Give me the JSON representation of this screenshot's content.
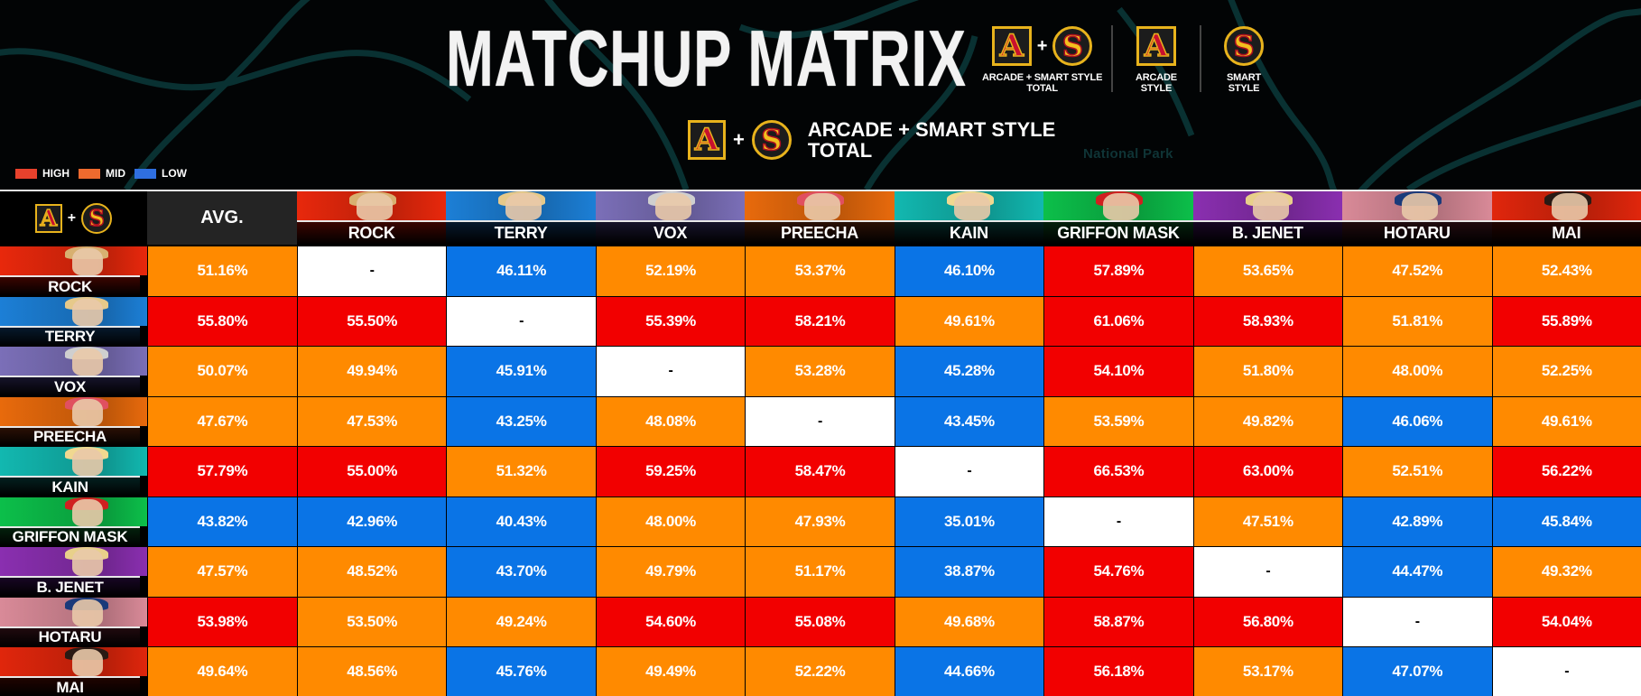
{
  "header": {
    "title": "MATCHUP MATRIX",
    "style_legend": [
      {
        "id": "total",
        "icons": [
          "A",
          "+",
          "S"
        ],
        "label": "ARCADE + SMART STYLE\nTOTAL"
      },
      {
        "id": "arcade",
        "icons": [
          "A"
        ],
        "label": "ARCADE\nSTYLE"
      },
      {
        "id": "smart",
        "icons": [
          "S"
        ],
        "label": "SMART\nSTYLE"
      }
    ],
    "current_view": {
      "icon_a": "A",
      "plus": "+",
      "icon_s": "S",
      "label": "ARCADE + SMART STYLE\nTOTAL"
    },
    "tier_legend": [
      {
        "label": "HIGH",
        "color": "#e8412c"
      },
      {
        "label": "MID",
        "color": "#ee6a2e"
      },
      {
        "label": "LOW",
        "color": "#2f6fe0"
      }
    ],
    "map_label": "National Park"
  },
  "colors": {
    "high": "#f20000",
    "mid": "#ff8a00",
    "low": "#0a74e6",
    "self": "#ffffff",
    "avg_header": "#242424"
  },
  "table": {
    "corner": {
      "icon_a": "A",
      "plus": "+",
      "icon_s": "S"
    },
    "avg_label": "AVG.",
    "self_marker": "-"
  },
  "chart_data": {
    "type": "heatmap",
    "title": "MATCHUP MATRIX",
    "subtitle": "ARCADE + SMART STYLE TOTAL",
    "legend": [
      "HIGH",
      "MID",
      "LOW"
    ],
    "columns": [
      "AVG.",
      "ROCK",
      "TERRY",
      "VOX",
      "PREECHA",
      "KAIN",
      "GRIFFON MASK",
      "B. JENET",
      "HOTARU",
      "MAI"
    ],
    "characters": [
      {
        "name": "ROCK",
        "theme": [
          "#e8280c",
          "#3a0500"
        ],
        "avg": {
          "v": "51.16%",
          "t": "mid"
        },
        "cells": [
          {
            "v": "-",
            "t": "self"
          },
          {
            "v": "46.11%",
            "t": "low"
          },
          {
            "v": "52.19%",
            "t": "mid"
          },
          {
            "v": "53.37%",
            "t": "mid"
          },
          {
            "v": "46.10%",
            "t": "low"
          },
          {
            "v": "57.89%",
            "t": "high"
          },
          {
            "v": "53.65%",
            "t": "mid"
          },
          {
            "v": "47.52%",
            "t": "mid"
          },
          {
            "v": "52.43%",
            "t": "mid"
          }
        ]
      },
      {
        "name": "TERRY",
        "theme": [
          "#1c7fd6",
          "#06192c"
        ],
        "avg": {
          "v": "55.80%",
          "t": "high"
        },
        "cells": [
          {
            "v": "55.50%",
            "t": "high"
          },
          {
            "v": "-",
            "t": "self"
          },
          {
            "v": "55.39%",
            "t": "high"
          },
          {
            "v": "58.21%",
            "t": "high"
          },
          {
            "v": "49.61%",
            "t": "mid"
          },
          {
            "v": "61.06%",
            "t": "high"
          },
          {
            "v": "58.93%",
            "t": "high"
          },
          {
            "v": "51.81%",
            "t": "mid"
          },
          {
            "v": "55.89%",
            "t": "high"
          }
        ]
      },
      {
        "name": "VOX",
        "theme": [
          "#7b6fb8",
          "#16132a"
        ],
        "avg": {
          "v": "50.07%",
          "t": "mid"
        },
        "cells": [
          {
            "v": "49.94%",
            "t": "mid"
          },
          {
            "v": "45.91%",
            "t": "low"
          },
          {
            "v": "-",
            "t": "self"
          },
          {
            "v": "53.28%",
            "t": "mid"
          },
          {
            "v": "45.28%",
            "t": "low"
          },
          {
            "v": "54.10%",
            "t": "high"
          },
          {
            "v": "51.80%",
            "t": "mid"
          },
          {
            "v": "48.00%",
            "t": "mid"
          },
          {
            "v": "52.25%",
            "t": "mid"
          }
        ]
      },
      {
        "name": "PREECHA",
        "theme": [
          "#e86a0c",
          "#2a1005"
        ],
        "avg": {
          "v": "47.67%",
          "t": "mid"
        },
        "cells": [
          {
            "v": "47.53%",
            "t": "mid"
          },
          {
            "v": "43.25%",
            "t": "low"
          },
          {
            "v": "48.08%",
            "t": "mid"
          },
          {
            "v": "-",
            "t": "self"
          },
          {
            "v": "43.45%",
            "t": "low"
          },
          {
            "v": "53.59%",
            "t": "mid"
          },
          {
            "v": "49.82%",
            "t": "mid"
          },
          {
            "v": "46.06%",
            "t": "low"
          },
          {
            "v": "49.61%",
            "t": "mid"
          }
        ]
      },
      {
        "name": "KAIN",
        "theme": [
          "#12b8b0",
          "#03201f"
        ],
        "avg": {
          "v": "57.79%",
          "t": "high"
        },
        "cells": [
          {
            "v": "55.00%",
            "t": "high"
          },
          {
            "v": "51.32%",
            "t": "mid"
          },
          {
            "v": "59.25%",
            "t": "high"
          },
          {
            "v": "58.47%",
            "t": "high"
          },
          {
            "v": "-",
            "t": "self"
          },
          {
            "v": "66.53%",
            "t": "high"
          },
          {
            "v": "63.00%",
            "t": "high"
          },
          {
            "v": "52.51%",
            "t": "mid"
          },
          {
            "v": "56.22%",
            "t": "high"
          }
        ]
      },
      {
        "name": "GRIFFON MASK",
        "theme": [
          "#0cbf4a",
          "#03200c"
        ],
        "avg": {
          "v": "43.82%",
          "t": "low"
        },
        "cells": [
          {
            "v": "42.96%",
            "t": "low"
          },
          {
            "v": "40.43%",
            "t": "low"
          },
          {
            "v": "48.00%",
            "t": "mid"
          },
          {
            "v": "47.93%",
            "t": "mid"
          },
          {
            "v": "35.01%",
            "t": "low"
          },
          {
            "v": "-",
            "t": "self"
          },
          {
            "v": "47.51%",
            "t": "mid"
          },
          {
            "v": "42.89%",
            "t": "low"
          },
          {
            "v": "45.84%",
            "t": "low"
          }
        ]
      },
      {
        "name": "B. JENET",
        "theme": [
          "#8a2fb0",
          "#180624"
        ],
        "avg": {
          "v": "47.57%",
          "t": "mid"
        },
        "cells": [
          {
            "v": "48.52%",
            "t": "mid"
          },
          {
            "v": "43.70%",
            "t": "low"
          },
          {
            "v": "49.79%",
            "t": "mid"
          },
          {
            "v": "51.17%",
            "t": "mid"
          },
          {
            "v": "38.87%",
            "t": "low"
          },
          {
            "v": "54.76%",
            "t": "high"
          },
          {
            "v": "-",
            "t": "self"
          },
          {
            "v": "44.47%",
            "t": "low"
          },
          {
            "v": "49.32%",
            "t": "mid"
          }
        ]
      },
      {
        "name": "HOTARU",
        "theme": [
          "#d98a98",
          "#200a0e"
        ],
        "avg": {
          "v": "53.98%",
          "t": "high"
        },
        "cells": [
          {
            "v": "53.50%",
            "t": "mid"
          },
          {
            "v": "49.24%",
            "t": "mid"
          },
          {
            "v": "54.60%",
            "t": "high"
          },
          {
            "v": "55.08%",
            "t": "high"
          },
          {
            "v": "49.68%",
            "t": "mid"
          },
          {
            "v": "58.87%",
            "t": "high"
          },
          {
            "v": "56.80%",
            "t": "high"
          },
          {
            "v": "-",
            "t": "self"
          },
          {
            "v": "54.04%",
            "t": "high"
          }
        ]
      },
      {
        "name": "MAI",
        "theme": [
          "#e0260c",
          "#200400"
        ],
        "avg": {
          "v": "49.64%",
          "t": "mid"
        },
        "cells": [
          {
            "v": "48.56%",
            "t": "mid"
          },
          {
            "v": "45.76%",
            "t": "low"
          },
          {
            "v": "49.49%",
            "t": "mid"
          },
          {
            "v": "52.22%",
            "t": "mid"
          },
          {
            "v": "44.66%",
            "t": "low"
          },
          {
            "v": "56.18%",
            "t": "high"
          },
          {
            "v": "53.17%",
            "t": "mid"
          },
          {
            "v": "47.07%",
            "t": "low"
          },
          {
            "v": "-",
            "t": "self"
          }
        ]
      }
    ]
  }
}
